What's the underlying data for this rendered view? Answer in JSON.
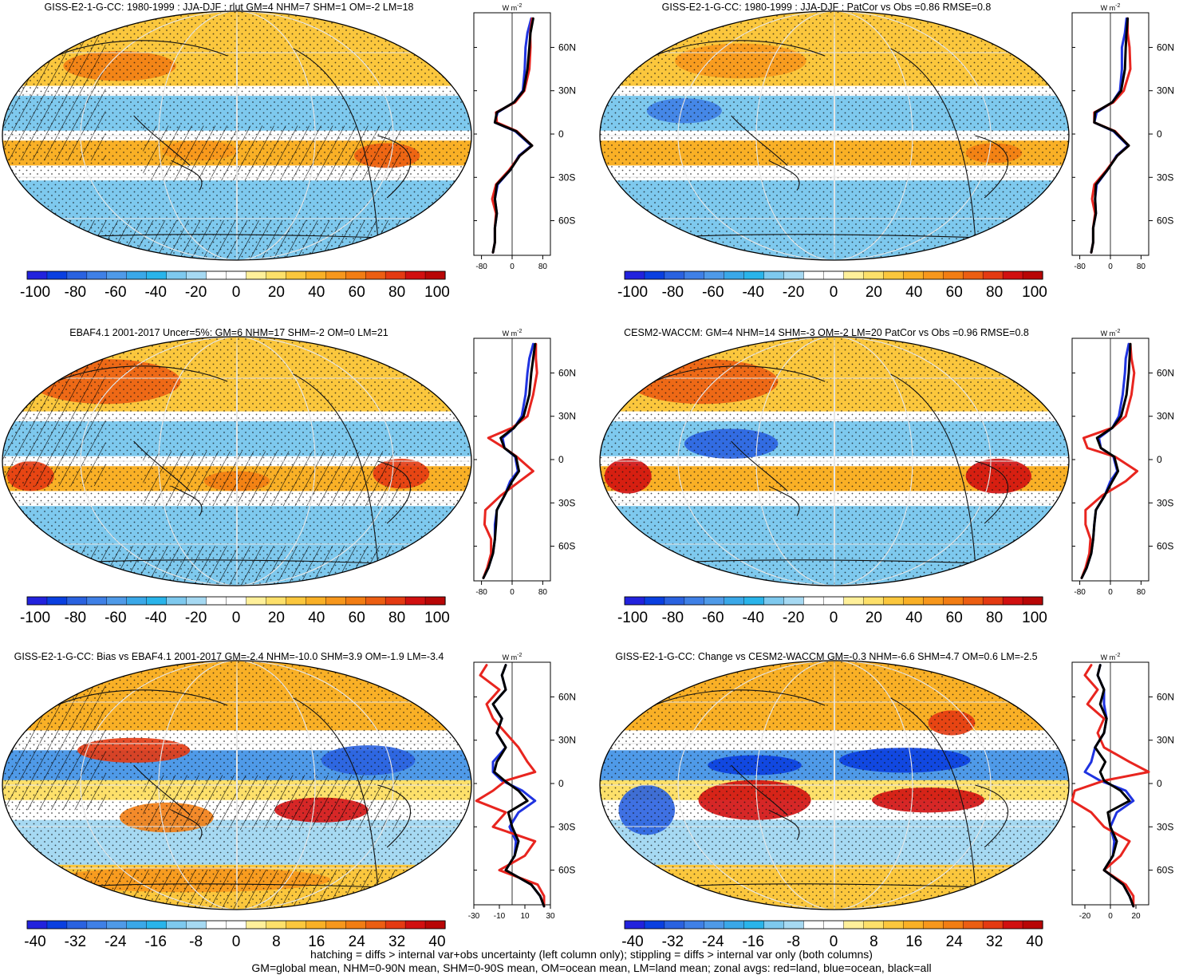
{
  "colors": {
    "land": "#e8251f",
    "ocean": "#1f33e0",
    "all": "#000000",
    "hatch": "#000000",
    "grid": "#e6e6e6",
    "coast": "#111111",
    "scale_rlut": [
      "#2222dd",
      "#0a3fe0",
      "#2a62e0",
      "#3f80e6",
      "#4f9ae8",
      "#3aa8e8",
      "#29b4ea",
      "#7ec9ee",
      "#a6d9f2",
      "#ffffff",
      "#ffffff",
      "#fff09a",
      "#fde06a",
      "#fbc73d",
      "#f9b026",
      "#f7971c",
      "#f27d13",
      "#ec5e12",
      "#e43a12",
      "#d11010",
      "#b80606"
    ],
    "scale_bias": [
      "#2222dd",
      "#0a3fe0",
      "#2a62e0",
      "#3f80e6",
      "#4f9ae8",
      "#3aa8e8",
      "#29b4ea",
      "#7ec9ee",
      "#a6d9f2",
      "#ffffff",
      "#ffffff",
      "#fff09a",
      "#fde06a",
      "#fbc73d",
      "#f9b026",
      "#f7971c",
      "#f27d13",
      "#ec5e12",
      "#e43a12",
      "#d11010",
      "#b80606"
    ]
  },
  "lat_ticks": [
    "60N",
    "30N",
    "0",
    "30S",
    "60S"
  ],
  "footnotes": {
    "line1": "hatching = diffs > internal var+obs uncertainty (left column only); stippling = diffs > internal var only (both columns)",
    "line2": "GM=global mean, NHM=0-90N mean, SHM=0-90S mean, OM=ocean mean, LM=land mean; zonal avgs: red=land, blue=ocean, black=all"
  },
  "chart_data": [
    {
      "type": "heatmap",
      "title": "GISS-E2-1-G-CC: 1980-1999 : JJA-DJF : rlut GM=4 NHM=7 SHM=1 OM=-2 LM=18",
      "colorbar": {
        "ticks": [
          "-100",
          "-80",
          "-60",
          "-40",
          "-20",
          "0",
          "20",
          "40",
          "60",
          "80",
          "100"
        ],
        "range": [
          -100,
          100
        ]
      },
      "hatched": true,
      "zonal": {
        "unit_label": "W m",
        "unit_sup": "-2",
        "x_ticks": [
          "-80",
          "0",
          "80"
        ],
        "xlim": [
          -100,
          100
        ],
        "lat": [
          80,
          70,
          60,
          45,
          30,
          22,
          15,
          8,
          2,
          -8,
          -15,
          -25,
          -35,
          -45,
          -55,
          -65,
          -75,
          -82
        ],
        "all": [
          55,
          48,
          45,
          40,
          30,
          5,
          -40,
          -45,
          10,
          52,
          20,
          -5,
          -40,
          -45,
          -40,
          -45,
          -45,
          -50
        ],
        "land": [
          52,
          47,
          48,
          45,
          32,
          8,
          -42,
          -40,
          12,
          52,
          20,
          -8,
          -42,
          -52,
          -42,
          -45,
          -45,
          -50
        ],
        "ocean": [
          50,
          40,
          35,
          33,
          28,
          5,
          -38,
          -45,
          8,
          50,
          18,
          -5,
          -38,
          -45,
          -40,
          -45,
          -45,
          -50
        ]
      }
    },
    {
      "type": "heatmap",
      "title": "GISS-E2-1-G-CC: 1980-1999 : JJA-DJF : PatCor vs Obs =0.86 RMSE=0.8",
      "colorbar": {
        "ticks": [
          "-100",
          "-80",
          "-60",
          "-40",
          "-20",
          "0",
          "20",
          "40",
          "60",
          "80",
          "100"
        ],
        "range": [
          -100,
          100
        ]
      },
      "hatched": false,
      "zonal": {
        "unit_label": "W m",
        "unit_sup": "-2",
        "x_ticks": [
          "-80",
          "0",
          "80"
        ],
        "xlim": [
          -100,
          100
        ],
        "lat": [
          80,
          70,
          60,
          45,
          30,
          22,
          15,
          8,
          2,
          -8,
          -15,
          -25,
          -35,
          -45,
          -55,
          -65,
          -75,
          -82
        ],
        "all": [
          45,
          42,
          40,
          38,
          28,
          5,
          -40,
          -42,
          10,
          48,
          18,
          -8,
          -38,
          -40,
          -38,
          -45,
          -45,
          -50
        ],
        "land": [
          45,
          45,
          50,
          52,
          35,
          8,
          -42,
          -42,
          12,
          48,
          18,
          -10,
          -42,
          -48,
          -40,
          -45,
          -45,
          -50
        ],
        "ocean": [
          42,
          38,
          30,
          30,
          25,
          5,
          -36,
          -42,
          8,
          46,
          16,
          -8,
          -36,
          -40,
          -38,
          -45,
          -45,
          -50
        ]
      }
    },
    {
      "type": "heatmap",
      "title": "EBAF4.1 2001-2017 Uncer=5%: GM=6 NHM=17 SHM=-2 OM=0 LM=21",
      "colorbar": {
        "ticks": [
          "-100",
          "-80",
          "-60",
          "-40",
          "-20",
          "0",
          "20",
          "40",
          "60",
          "80",
          "100"
        ],
        "range": [
          -100,
          100
        ]
      },
      "hatched": true,
      "zonal": {
        "unit_label": "W m",
        "unit_sup": "-2",
        "x_ticks": [
          "-80",
          "0",
          "80"
        ],
        "xlim": [
          -100,
          100
        ],
        "lat": [
          80,
          70,
          60,
          45,
          30,
          22,
          15,
          8,
          2,
          -8,
          -15,
          -25,
          -35,
          -45,
          -55,
          -65,
          -75,
          -82
        ],
        "all": [
          60,
          55,
          50,
          45,
          30,
          5,
          -30,
          -20,
          10,
          18,
          0,
          -20,
          -40,
          -42,
          -45,
          -50,
          -62,
          -75
        ],
        "land": [
          62,
          62,
          65,
          55,
          40,
          0,
          -62,
          -20,
          12,
          55,
          20,
          -30,
          -70,
          -72,
          -55,
          -55,
          -65,
          -75
        ],
        "ocean": [
          55,
          45,
          40,
          35,
          25,
          5,
          -25,
          -20,
          8,
          15,
          -5,
          -20,
          -40,
          -45,
          -45,
          -50,
          -62,
          -75
        ]
      }
    },
    {
      "type": "heatmap",
      "title": "CESM2-WACCM: GM=4 NHM=14 SHM=-3 OM=-2 LM=20 PatCor vs Obs =0.96 RMSE=0.8",
      "colorbar": {
        "ticks": [
          "-100",
          "-80",
          "-60",
          "-40",
          "-20",
          "0",
          "20",
          "40",
          "60",
          "80",
          "100"
        ],
        "range": [
          -100,
          100
        ]
      },
      "hatched": false,
      "zonal": {
        "unit_label": "W m",
        "unit_sup": "-2",
        "x_ticks": [
          "-80",
          "0",
          "80"
        ],
        "xlim": [
          -100,
          100
        ],
        "lat": [
          80,
          70,
          60,
          45,
          30,
          22,
          15,
          8,
          2,
          -8,
          -15,
          -25,
          -35,
          -45,
          -55,
          -65,
          -75,
          -82
        ],
        "all": [
          52,
          50,
          48,
          42,
          28,
          5,
          -35,
          -25,
          10,
          20,
          5,
          -15,
          -38,
          -42,
          -45,
          -50,
          -62,
          -75
        ],
        "land": [
          52,
          55,
          62,
          55,
          40,
          5,
          -70,
          -60,
          12,
          70,
          40,
          -22,
          -65,
          -65,
          -52,
          -55,
          -65,
          -75
        ],
        "ocean": [
          48,
          40,
          38,
          32,
          22,
          5,
          -30,
          -25,
          8,
          18,
          0,
          -15,
          -38,
          -42,
          -45,
          -50,
          -62,
          -75
        ]
      }
    },
    {
      "type": "heatmap",
      "title": "GISS-E2-1-G-CC: Bias vs EBAF4.1 2001-2017 GM=-2.4 NHM=-10.0 SHM=3.9 OM=-1.9 LM=-3.4",
      "colorbar": {
        "ticks": [
          "-40",
          "-32",
          "-24",
          "-16",
          "-8",
          "0",
          "8",
          "16",
          "24",
          "32",
          "40"
        ],
        "range": [
          -40,
          40
        ]
      },
      "hatched": true,
      "zonal": {
        "unit_label": "W m",
        "unit_sup": "-2",
        "x_ticks": [
          "-30",
          "-10",
          "10",
          "30"
        ],
        "xlim": [
          -30,
          30
        ],
        "lat": [
          82,
          75,
          65,
          55,
          45,
          35,
          25,
          15,
          8,
          2,
          -5,
          -12,
          -20,
          -30,
          -40,
          -50,
          -60,
          -70,
          -78,
          -85
        ],
        "all": [
          -5,
          -8,
          -5,
          -15,
          -8,
          -12,
          -5,
          -12,
          -14,
          -6,
          5,
          12,
          -3,
          0,
          5,
          2,
          -5,
          15,
          22,
          25
        ],
        "land": [
          -20,
          -25,
          -10,
          -20,
          -15,
          -5,
          5,
          12,
          18,
          -5,
          -15,
          -28,
          -5,
          -15,
          18,
          10,
          -10,
          20,
          25,
          25
        ],
        "ocean": [
          -5,
          -8,
          -5,
          -15,
          -8,
          -12,
          -5,
          -15,
          -15,
          -8,
          8,
          18,
          5,
          -2,
          3,
          2,
          -5,
          15,
          22,
          25
        ]
      }
    },
    {
      "type": "heatmap",
      "title": "GISS-E2-1-G-CC: Change vs CESM2-WACCM GM=-0.3 NHM=-6.6 SHM=4.7 OM=0.6 LM=-2.5",
      "colorbar": {
        "ticks": [
          "-40",
          "-32",
          "-24",
          "-16",
          "-8",
          "0",
          "8",
          "16",
          "24",
          "32",
          "40"
        ],
        "range": [
          -40,
          40
        ]
      },
      "hatched": false,
      "zonal": {
        "unit_label": "W m",
        "unit_sup": "-2",
        "x_ticks": [
          "-20",
          "0",
          "20"
        ],
        "xlim": [
          -30,
          30
        ],
        "lat": [
          82,
          75,
          65,
          55,
          45,
          35,
          25,
          15,
          8,
          2,
          -5,
          -12,
          -20,
          -30,
          -40,
          -50,
          -60,
          -70,
          -78,
          -85
        ],
        "all": [
          -8,
          -10,
          -5,
          -8,
          -3,
          -5,
          -12,
          -4,
          -8,
          -5,
          8,
          15,
          -2,
          0,
          5,
          2,
          -5,
          10,
          15,
          18
        ],
        "land": [
          -15,
          -20,
          -10,
          -18,
          -5,
          -10,
          -5,
          15,
          30,
          -5,
          -28,
          -30,
          -15,
          -5,
          15,
          8,
          -5,
          12,
          18,
          18
        ],
        "ocean": [
          -8,
          -10,
          -5,
          -5,
          -3,
          -5,
          -12,
          -15,
          -20,
          -8,
          12,
          18,
          5,
          0,
          3,
          2,
          -5,
          10,
          15,
          18
        ]
      }
    }
  ]
}
